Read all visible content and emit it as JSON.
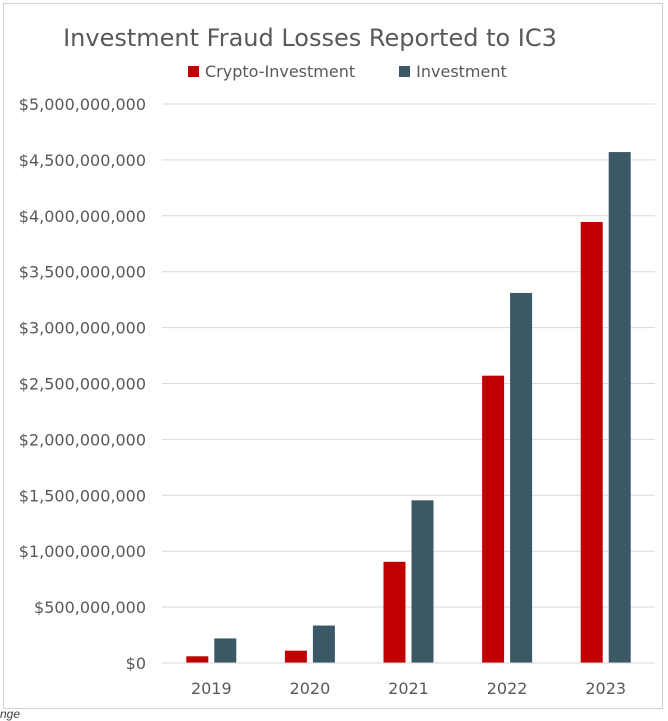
{
  "chart_data": {
    "type": "bar",
    "title": "Investment Fraud Losses Reported to IC3",
    "categories": [
      "2019",
      "2020",
      "2021",
      "2022",
      "2023"
    ],
    "series": [
      {
        "name": "Crypto-Investment",
        "color": "#C00000",
        "values": [
          60000000,
          110000000,
          905000000,
          2570000000,
          3945000000
        ]
      },
      {
        "name": "Investment",
        "color": "#3A5866",
        "values": [
          220000000,
          335000000,
          1455000000,
          3310000000,
          4570000000
        ]
      }
    ],
    "ylim": [
      0,
      5000000000
    ],
    "yticks": [
      0,
      500000000,
      1000000000,
      1500000000,
      2000000000,
      2500000000,
      3000000000,
      3500000000,
      4000000000,
      4500000000,
      5000000000
    ],
    "ytick_labels": [
      "$0",
      "$500,000,000",
      "$1,000,000,000",
      "$1,500,000,000",
      "$2,000,000,000",
      "$2,500,000,000",
      "$3,000,000,000",
      "$3,500,000,000",
      "$4,000,000,000",
      "$4,500,000,000",
      "$5,000,000,000"
    ],
    "grid": true,
    "legend_position": "top"
  },
  "footnote": "nge"
}
